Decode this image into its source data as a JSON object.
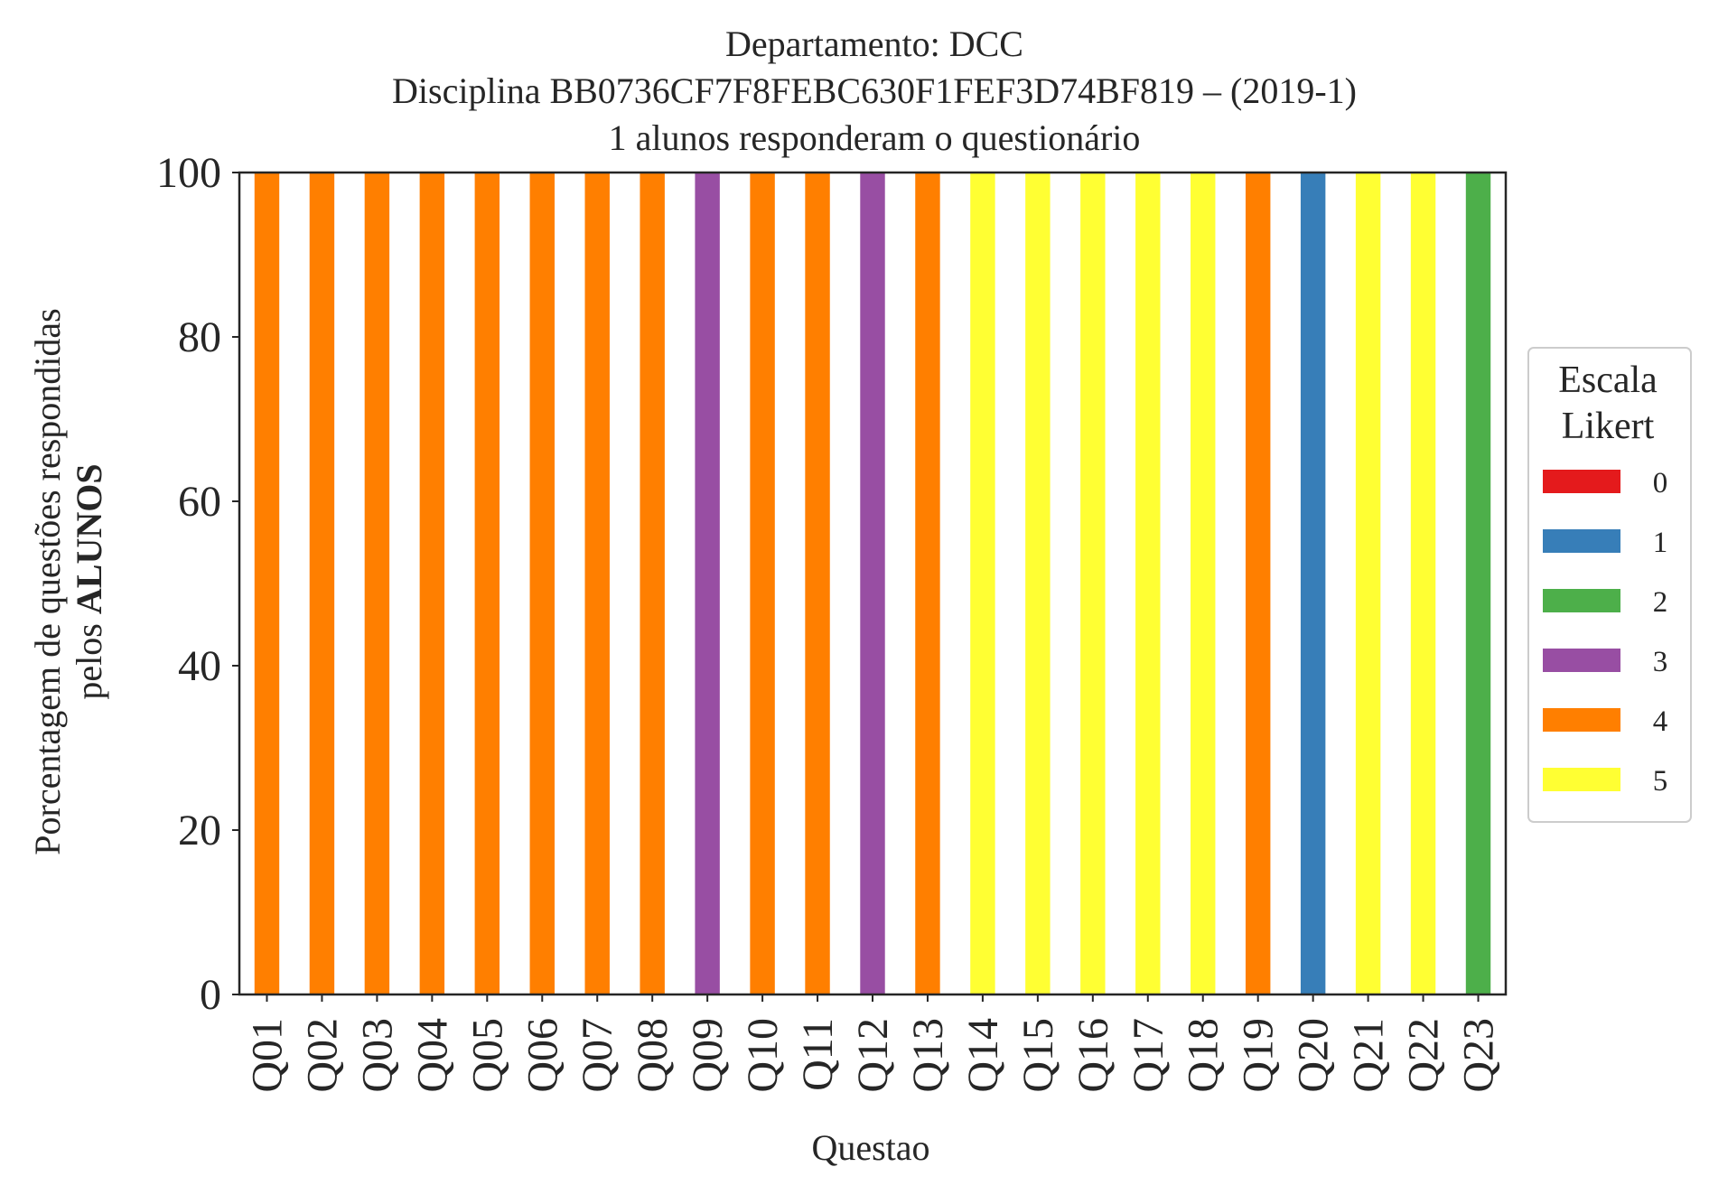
{
  "title": {
    "line1": "Departamento: DCC",
    "line2": "Disciplina BB0736CF7F8FEBC630F1FEF3D74BF819 – (2019-1)",
    "line3": "1 alunos responderam o questionário"
  },
  "ylabel": {
    "line1": "Porcentagem de questões respondidas",
    "line2_prefix": "pelos ",
    "line2_bold": "ALUNOS"
  },
  "legend": {
    "title_line1": "Escala",
    "title_line2": "Likert",
    "placement": "right, outside plot, vertically centered"
  },
  "colors": {
    "0": "#e41a1c",
    "1": "#377eb8",
    "2": "#4daf4a",
    "3": "#984ea3",
    "4": "#ff7f00",
    "5": "#ffff33"
  },
  "chart_data": {
    "type": "bar",
    "stacked": true,
    "xlabel": "Questao",
    "ylabel": "Porcentagem de questões respondidas pelos ALUNOS",
    "ylim": [
      0,
      100
    ],
    "yticks": [
      0,
      20,
      40,
      60,
      80,
      100
    ],
    "grid": false,
    "legend_title": "Escala Likert",
    "legend_placement": "right",
    "categories": [
      "Q01",
      "Q02",
      "Q03",
      "Q04",
      "Q05",
      "Q06",
      "Q07",
      "Q08",
      "Q09",
      "Q10",
      "Q11",
      "Q12",
      "Q13",
      "Q14",
      "Q15",
      "Q16",
      "Q17",
      "Q18",
      "Q19",
      "Q20",
      "Q21",
      "Q22",
      "Q23"
    ],
    "series": [
      {
        "name": "0",
        "values": [
          0,
          0,
          0,
          0,
          0,
          0,
          0,
          0,
          0,
          0,
          0,
          0,
          0,
          0,
          0,
          0,
          0,
          0,
          0,
          0,
          0,
          0,
          0
        ]
      },
      {
        "name": "1",
        "values": [
          0,
          0,
          0,
          0,
          0,
          0,
          0,
          0,
          0,
          0,
          0,
          0,
          0,
          0,
          0,
          0,
          0,
          0,
          0,
          100,
          0,
          0,
          0
        ]
      },
      {
        "name": "2",
        "values": [
          0,
          0,
          0,
          0,
          0,
          0,
          0,
          0,
          0,
          0,
          0,
          0,
          0,
          0,
          0,
          0,
          0,
          0,
          0,
          0,
          0,
          0,
          100
        ]
      },
      {
        "name": "3",
        "values": [
          0,
          0,
          0,
          0,
          0,
          0,
          0,
          0,
          100,
          0,
          0,
          100,
          0,
          0,
          0,
          0,
          0,
          0,
          0,
          0,
          0,
          0,
          0
        ]
      },
      {
        "name": "4",
        "values": [
          100,
          100,
          100,
          100,
          100,
          100,
          100,
          100,
          0,
          100,
          100,
          0,
          100,
          0,
          0,
          0,
          0,
          0,
          100,
          0,
          0,
          0,
          0
        ]
      },
      {
        "name": "5",
        "values": [
          0,
          0,
          0,
          0,
          0,
          0,
          0,
          0,
          0,
          0,
          0,
          0,
          0,
          100,
          100,
          100,
          100,
          100,
          0,
          0,
          100,
          100,
          0
        ]
      }
    ]
  }
}
